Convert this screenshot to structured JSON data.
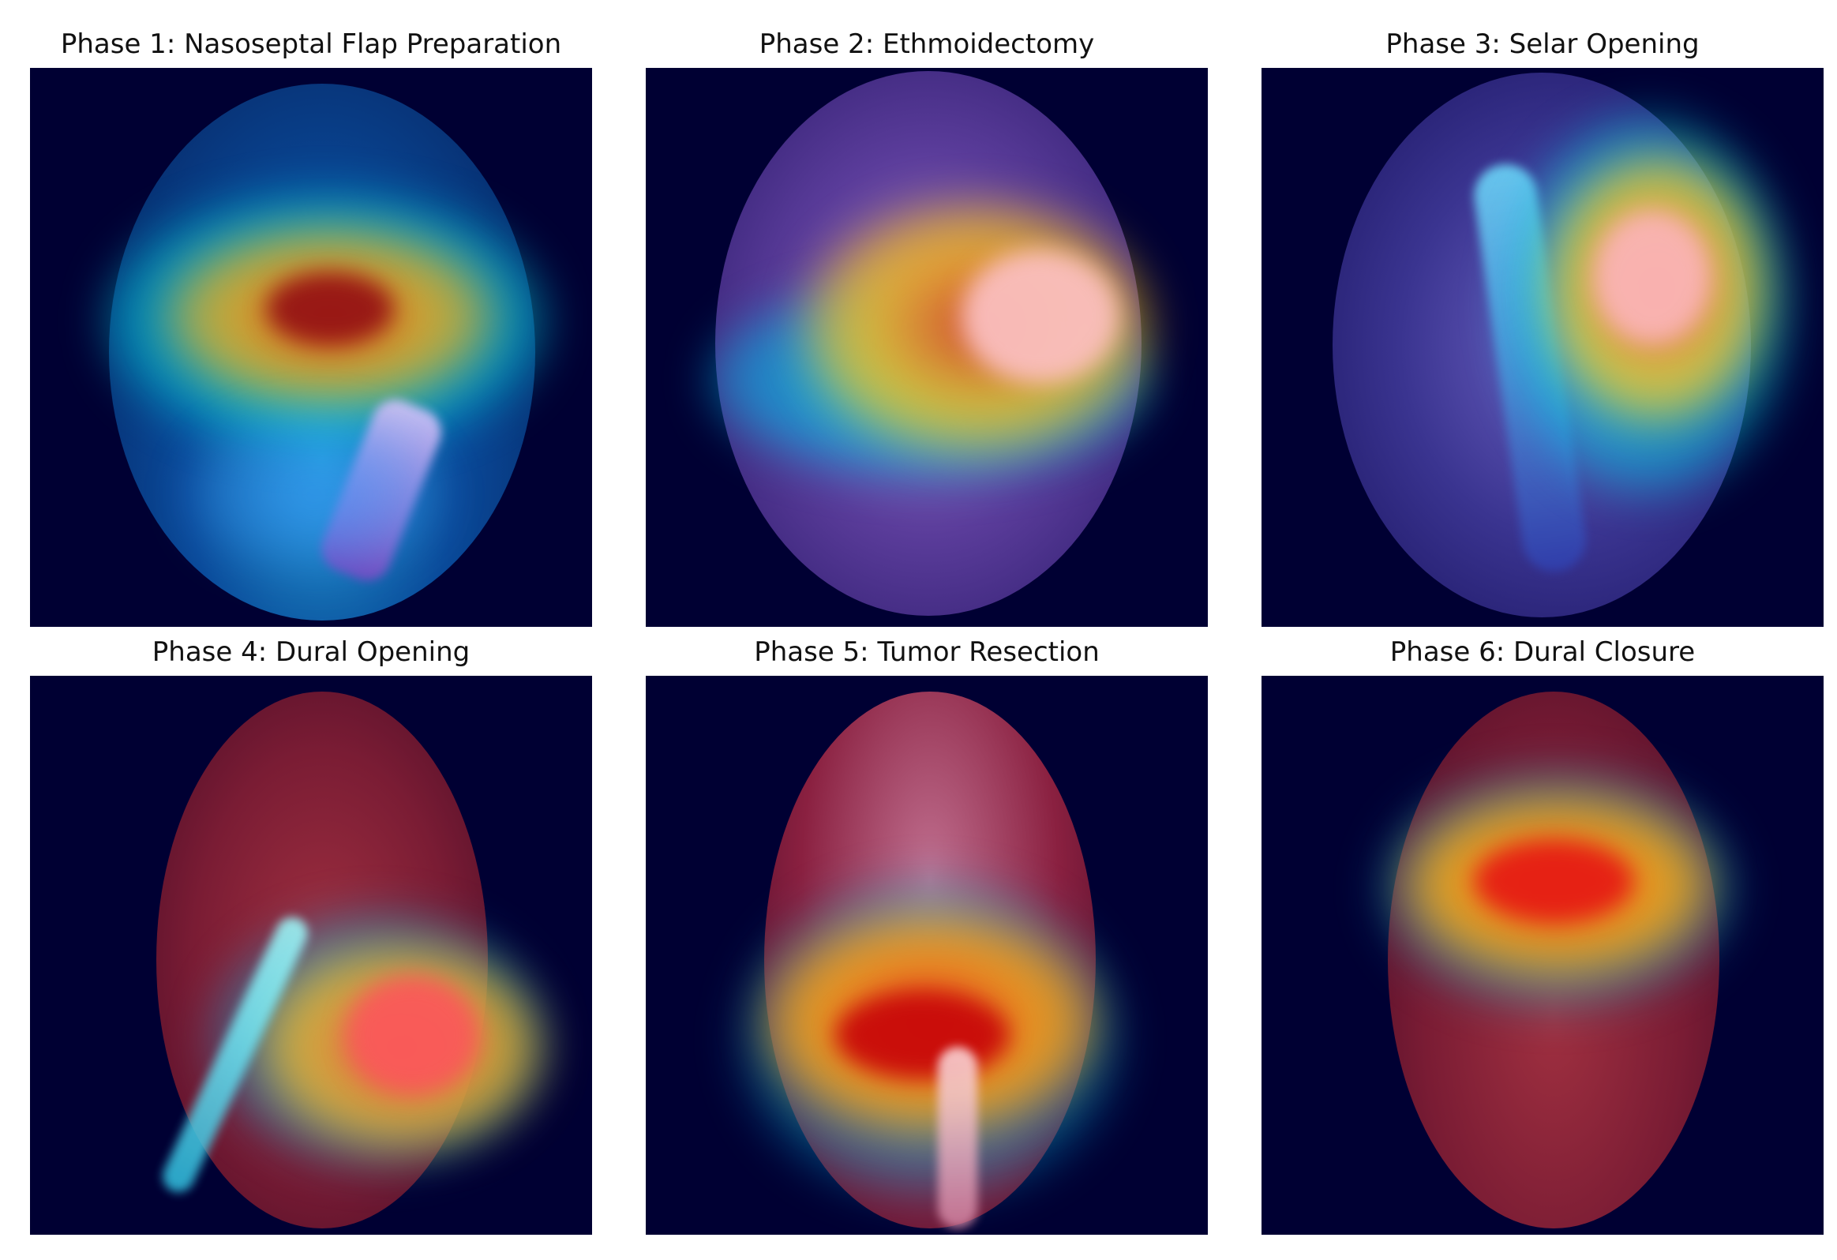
{
  "panels": [
    {
      "title": "Phase 1: Nasoseptal Flap Preparation",
      "tone": "blue"
    },
    {
      "title": "Phase 2: Ethmoidectomy",
      "tone": "blue"
    },
    {
      "title": "Phase 3: Selar Opening",
      "tone": "blue"
    },
    {
      "title": "Phase 4: Dural Opening",
      "tone": "red"
    },
    {
      "title": "Phase 5: Tumor Resection",
      "tone": "red"
    },
    {
      "title": "Phase 6: Dural Closure",
      "tone": "red"
    }
  ],
  "colors": {
    "background": "#000033",
    "hot": "#ff3030",
    "warm": "#ffcc00",
    "cool": "#00e0d0"
  }
}
